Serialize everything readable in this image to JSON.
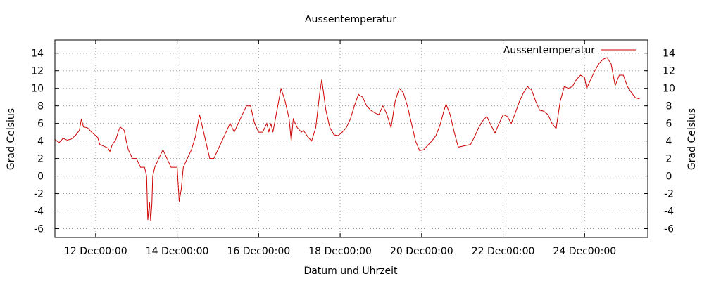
{
  "chart_data": {
    "type": "line",
    "title": "Aussentemperatur",
    "xlabel": "Datum und Uhrzeit",
    "ylabel": "Grad Celsius",
    "y2label": "Grad Celsius",
    "xlim": [
      0,
      14.55
    ],
    "ylim": [
      -7,
      15.5
    ],
    "x_unit": "days from 11 Dec 00:00",
    "grid": true,
    "legend": "top-right",
    "x_ticks": [
      {
        "x": 1,
        "label": "12 Dec00:00"
      },
      {
        "x": 3,
        "label": "14 Dec00:00"
      },
      {
        "x": 5,
        "label": "16 Dec00:00"
      },
      {
        "x": 7,
        "label": "18 Dec00:00"
      },
      {
        "x": 9,
        "label": "20 Dec00:00"
      },
      {
        "x": 11,
        "label": "22 Dec00:00"
      },
      {
        "x": 13,
        "label": "24 Dec00:00"
      }
    ],
    "y_ticks": [
      {
        "y": 14,
        "label": "14"
      },
      {
        "y": 12,
        "label": "12"
      },
      {
        "y": 10,
        "label": "10"
      },
      {
        "y": 8,
        "label": "8"
      },
      {
        "y": 6,
        "label": "6"
      },
      {
        "y": 4,
        "label": "4"
      },
      {
        "y": 2,
        "label": "2"
      },
      {
        "y": 0,
        "label": "0"
      },
      {
        "y": -2,
        "label": "-2"
      },
      {
        "y": -4,
        "label": "-4"
      },
      {
        "y": -6,
        "label": "-6"
      }
    ],
    "series": [
      {
        "name": "Aussentemperatur",
        "color": "#cc0000",
        "points": [
          [
            0.0,
            4.2
          ],
          [
            0.1,
            3.8
          ],
          [
            0.2,
            4.3
          ],
          [
            0.3,
            4.1
          ],
          [
            0.4,
            4.2
          ],
          [
            0.5,
            4.6
          ],
          [
            0.6,
            5.2
          ],
          [
            0.65,
            6.5
          ],
          [
            0.7,
            5.6
          ],
          [
            0.8,
            5.5
          ],
          [
            0.9,
            5.0
          ],
          [
            1.0,
            4.6
          ],
          [
            1.05,
            4.4
          ],
          [
            1.1,
            3.6
          ],
          [
            1.2,
            3.4
          ],
          [
            1.3,
            3.2
          ],
          [
            1.35,
            2.8
          ],
          [
            1.4,
            3.5
          ],
          [
            1.5,
            4.2
          ],
          [
            1.55,
            5.0
          ],
          [
            1.6,
            5.6
          ],
          [
            1.7,
            5.2
          ],
          [
            1.75,
            4.0
          ],
          [
            1.8,
            3.0
          ],
          [
            1.9,
            2.0
          ],
          [
            2.0,
            2.0
          ],
          [
            2.1,
            1.0
          ],
          [
            2.2,
            1.0
          ],
          [
            2.25,
            0.0
          ],
          [
            2.28,
            -5.0
          ],
          [
            2.32,
            -3.0
          ],
          [
            2.35,
            -5.1
          ],
          [
            2.38,
            -3.2
          ],
          [
            2.4,
            0.0
          ],
          [
            2.45,
            1.0
          ],
          [
            2.55,
            2.0
          ],
          [
            2.65,
            3.0
          ],
          [
            2.75,
            2.0
          ],
          [
            2.85,
            1.0
          ],
          [
            3.0,
            1.0
          ],
          [
            3.05,
            -2.9
          ],
          [
            3.1,
            -1.5
          ],
          [
            3.15,
            1.0
          ],
          [
            3.25,
            2.0
          ],
          [
            3.35,
            3.0
          ],
          [
            3.45,
            4.5
          ],
          [
            3.55,
            7.0
          ],
          [
            3.65,
            5.0
          ],
          [
            3.75,
            3.0
          ],
          [
            3.8,
            2.0
          ],
          [
            3.9,
            2.0
          ],
          [
            4.0,
            3.0
          ],
          [
            4.1,
            4.0
          ],
          [
            4.2,
            5.0
          ],
          [
            4.3,
            6.0
          ],
          [
            4.4,
            5.0
          ],
          [
            4.5,
            6.0
          ],
          [
            4.6,
            7.0
          ],
          [
            4.7,
            8.0
          ],
          [
            4.8,
            8.0
          ],
          [
            4.9,
            6.0
          ],
          [
            5.0,
            5.0
          ],
          [
            5.1,
            5.0
          ],
          [
            5.2,
            6.0
          ],
          [
            5.25,
            5.0
          ],
          [
            5.3,
            6.0
          ],
          [
            5.35,
            5.0
          ],
          [
            5.45,
            7.5
          ],
          [
            5.55,
            10.0
          ],
          [
            5.65,
            8.5
          ],
          [
            5.75,
            6.5
          ],
          [
            5.8,
            4.0
          ],
          [
            5.85,
            6.5
          ],
          [
            5.95,
            5.5
          ],
          [
            6.05,
            5.0
          ],
          [
            6.1,
            5.2
          ],
          [
            6.2,
            4.5
          ],
          [
            6.3,
            4.0
          ],
          [
            6.4,
            5.5
          ],
          [
            6.5,
            9.5
          ],
          [
            6.55,
            11.0
          ],
          [
            6.65,
            7.5
          ],
          [
            6.75,
            5.5
          ],
          [
            6.85,
            4.7
          ],
          [
            6.95,
            4.6
          ],
          [
            7.05,
            5.0
          ],
          [
            7.15,
            5.5
          ],
          [
            7.25,
            6.5
          ],
          [
            7.35,
            8.0
          ],
          [
            7.45,
            9.3
          ],
          [
            7.55,
            9.0
          ],
          [
            7.65,
            8.0
          ],
          [
            7.75,
            7.5
          ],
          [
            7.85,
            7.2
          ],
          [
            7.95,
            7.0
          ],
          [
            8.05,
            8.0
          ],
          [
            8.15,
            7.0
          ],
          [
            8.25,
            5.5
          ],
          [
            8.35,
            8.5
          ],
          [
            8.45,
            10.0
          ],
          [
            8.55,
            9.5
          ],
          [
            8.65,
            8.0
          ],
          [
            8.75,
            6.0
          ],
          [
            8.85,
            4.0
          ],
          [
            8.95,
            2.9
          ],
          [
            9.05,
            3.0
          ],
          [
            9.15,
            3.5
          ],
          [
            9.25,
            4.0
          ],
          [
            9.35,
            4.6
          ],
          [
            9.45,
            5.8
          ],
          [
            9.55,
            7.5
          ],
          [
            9.6,
            8.2
          ],
          [
            9.7,
            7.0
          ],
          [
            9.8,
            5.0
          ],
          [
            9.9,
            3.3
          ],
          [
            10.0,
            3.4
          ],
          [
            10.1,
            3.5
          ],
          [
            10.2,
            3.6
          ],
          [
            10.3,
            4.5
          ],
          [
            10.4,
            5.5
          ],
          [
            10.5,
            6.3
          ],
          [
            10.6,
            6.8
          ],
          [
            10.7,
            5.8
          ],
          [
            10.8,
            4.9
          ],
          [
            10.9,
            6.0
          ],
          [
            11.0,
            7.0
          ],
          [
            11.1,
            6.8
          ],
          [
            11.2,
            6.0
          ],
          [
            11.3,
            7.2
          ],
          [
            11.4,
            8.5
          ],
          [
            11.5,
            9.5
          ],
          [
            11.6,
            10.2
          ],
          [
            11.7,
            9.8
          ],
          [
            11.8,
            8.5
          ],
          [
            11.9,
            7.5
          ],
          [
            12.0,
            7.4
          ],
          [
            12.1,
            7.0
          ],
          [
            12.2,
            6.0
          ],
          [
            12.3,
            5.4
          ],
          [
            12.4,
            8.5
          ],
          [
            12.5,
            10.2
          ],
          [
            12.6,
            10.0
          ],
          [
            12.7,
            10.2
          ],
          [
            12.8,
            11.0
          ],
          [
            12.9,
            11.5
          ],
          [
            13.0,
            11.2
          ],
          [
            13.05,
            10.0
          ],
          [
            13.15,
            11.0
          ],
          [
            13.25,
            12.0
          ],
          [
            13.35,
            12.8
          ],
          [
            13.45,
            13.3
          ],
          [
            13.55,
            13.5
          ],
          [
            13.65,
            12.8
          ],
          [
            13.75,
            10.3
          ],
          [
            13.85,
            11.5
          ],
          [
            13.95,
            11.5
          ],
          [
            14.05,
            10.2
          ],
          [
            14.15,
            9.5
          ],
          [
            14.25,
            8.9
          ],
          [
            14.35,
            8.8
          ]
        ]
      }
    ]
  }
}
